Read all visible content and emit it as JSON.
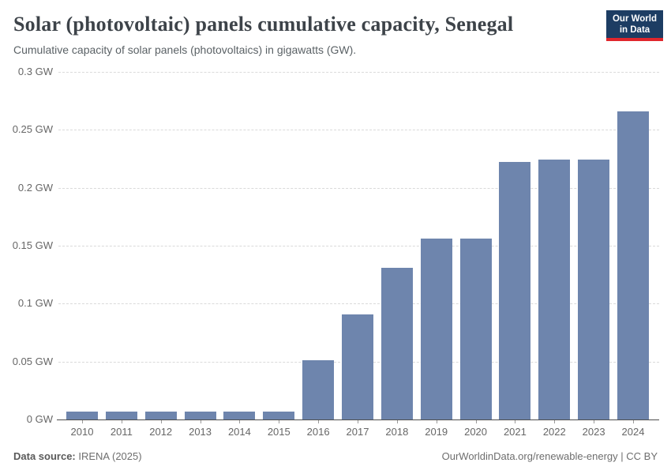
{
  "header": {
    "title": "Solar (photovoltaic) panels cumulative capacity, Senegal",
    "subtitle": "Cumulative capacity of solar panels (photovoltaics) in gigawatts (GW).",
    "logo": {
      "line1": "Our World",
      "line2": "in Data",
      "bg_color": "#1d3d63",
      "accent_color": "#e0262c"
    }
  },
  "chart_data": {
    "type": "bar",
    "title": "Solar (photovoltaic) panels cumulative capacity, Senegal",
    "subtitle": "Cumulative capacity of solar panels (photovoltaics) in gigawatts (GW).",
    "unit": "GW",
    "categories": [
      "2010",
      "2011",
      "2012",
      "2013",
      "2014",
      "2015",
      "2016",
      "2017",
      "2018",
      "2019",
      "2020",
      "2021",
      "2022",
      "2023",
      "2024"
    ],
    "values": [
      0.007,
      0.007,
      0.007,
      0.007,
      0.007,
      0.007,
      0.051,
      0.091,
      0.131,
      0.156,
      0.156,
      0.222,
      0.224,
      0.224,
      0.266
    ],
    "xlabel": "",
    "ylabel": "",
    "ylim": [
      0,
      0.3
    ],
    "yticks": [
      {
        "value": 0,
        "label": "0 GW"
      },
      {
        "value": 0.05,
        "label": "0.05 GW"
      },
      {
        "value": 0.1,
        "label": "0.1 GW"
      },
      {
        "value": 0.15,
        "label": "0.15 GW"
      },
      {
        "value": 0.2,
        "label": "0.2 GW"
      },
      {
        "value": 0.25,
        "label": "0.25 GW"
      },
      {
        "value": 0.3,
        "label": "0.3 GW"
      }
    ],
    "grid": true,
    "legend_position": "none",
    "bar_color": "#6e85ad"
  },
  "footer": {
    "source_label": "Data source:",
    "source_value": "IRENA (2025)",
    "right_link": "OurWorldinData.org/renewable-energy",
    "right_license": "CC BY",
    "right_separator": " | "
  }
}
